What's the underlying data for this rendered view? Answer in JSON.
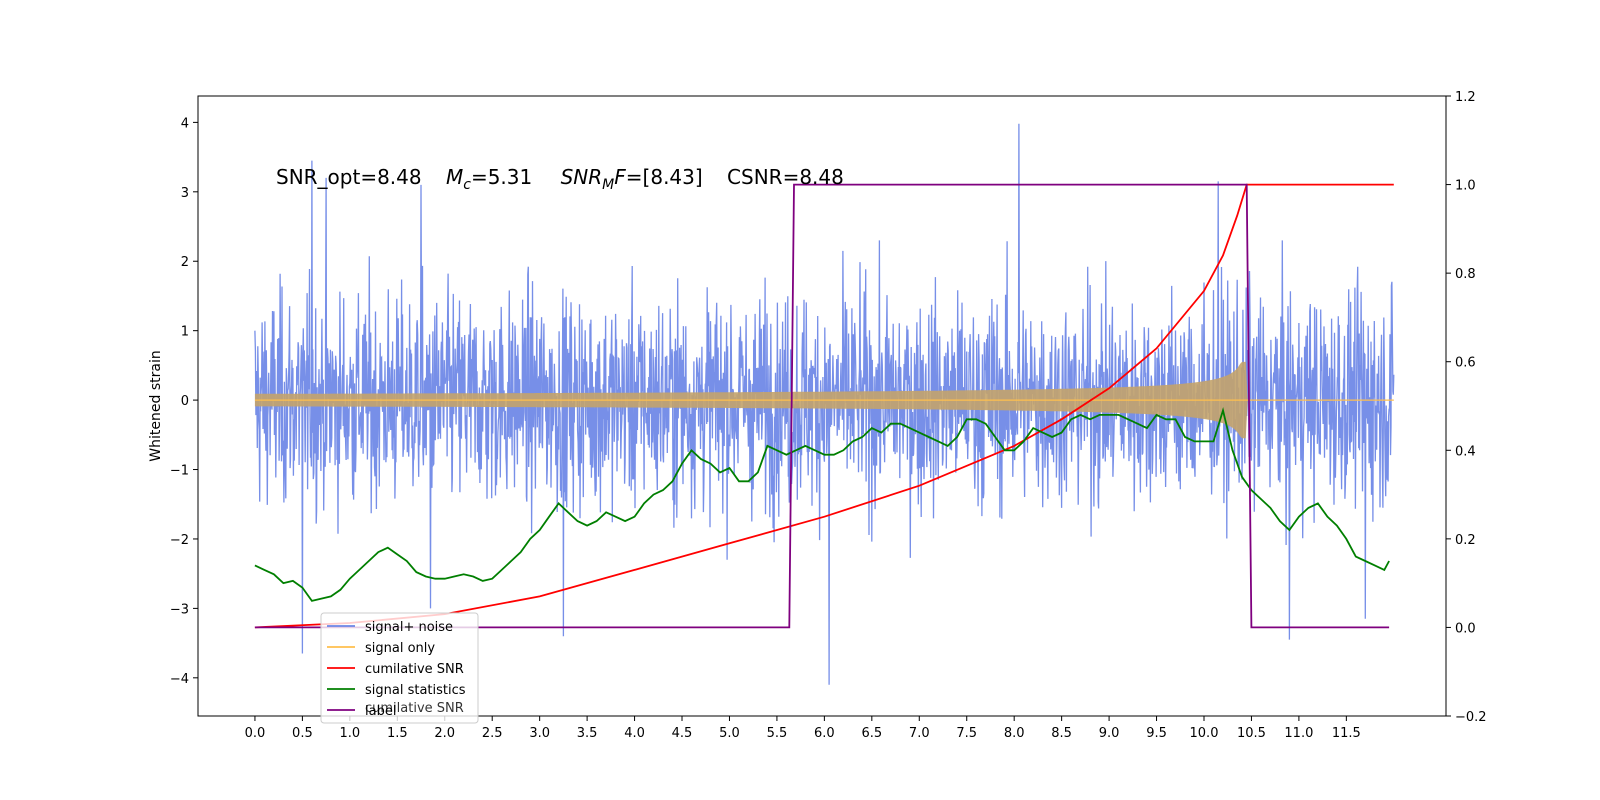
{
  "chart_data": {
    "type": "line",
    "annotation": {
      "snr_opt": "SNR_opt=8.48",
      "mc_symbol": "M",
      "mc_sub": "c",
      "mc_value": "=5.31",
      "snrmf_symbol": "SNR",
      "snrmf_sub": "M",
      "snrmf_tail": "F",
      "snrmf_value": "=[8.43]",
      "csnr": "CSNR=8.48"
    },
    "ylabel_left": "Whitened strain",
    "ylabel_right": "",
    "xlim": [
      -0.6,
      12.55
    ],
    "ylim_left": [
      -4.55,
      4.38
    ],
    "ylim_right": [
      -0.2,
      1.2
    ],
    "x_ticks": [
      0,
      0.5,
      1,
      1.5,
      2,
      2.5,
      3,
      3.5,
      4,
      4.5,
      5,
      5.5,
      6,
      6.5,
      7,
      7.5,
      8,
      8.5,
      9,
      9.5,
      10,
      10.5,
      11,
      11.5
    ],
    "x_tick_labels": [
      "0.0",
      "0.5",
      "1.0",
      "1.5",
      "2.0",
      "2.5",
      "3.0",
      "3.5",
      "4.0",
      "4.5",
      "5.0",
      "5.5",
      "6.0",
      "6.5",
      "7.0",
      "7.5",
      "8.0",
      "8.5",
      "9.0",
      "9.5",
      "10.0",
      "10.5",
      "11.0",
      "11.5"
    ],
    "y_left_ticks": [
      -4,
      -3,
      -2,
      -1,
      0,
      1,
      2,
      3,
      4
    ],
    "y_left_tick_labels": [
      "−4",
      "−3",
      "−2",
      "−1",
      "0",
      "1",
      "2",
      "3",
      "4"
    ],
    "y_right_ticks": [
      -0.2,
      0,
      0.2,
      0.4,
      0.6,
      0.8,
      1.0,
      1.2
    ],
    "y_right_tick_labels": [
      "−0.2",
      "0.0",
      "0.2",
      "0.4",
      "0.6",
      "0.8",
      "1.0",
      "1.2"
    ],
    "grid": false,
    "legend_placement": "lower-left",
    "legend": [
      {
        "label": "signal+ noise",
        "color": "#6b86e6"
      },
      {
        "label": "signal only",
        "color": "#ffbf4d"
      },
      {
        "label": "cumilative SNR",
        "color": "#ff0000"
      },
      {
        "label": "signal statistics",
        "color": "#007f00"
      },
      {
        "label": "label",
        "color": "#7f007f"
      }
    ],
    "legend_ghost_text": "cumilative SNR",
    "series": [
      {
        "name": "signal+ noise",
        "axis": "left",
        "color": "#6b86e6",
        "x_range": [
          0,
          12.0
        ],
        "envelope_typical": [
          -2.0,
          2.0
        ],
        "spikes": [
          {
            "x": 0.5,
            "y": -3.65
          },
          {
            "x": 0.6,
            "y": 3.45
          },
          {
            "x": 0.75,
            "y": 3.2
          },
          {
            "x": 1.75,
            "y": 3.1
          },
          {
            "x": 1.85,
            "y": -3.0
          },
          {
            "x": 3.25,
            "y": -3.4
          },
          {
            "x": 6.05,
            "y": -4.1
          },
          {
            "x": 8.05,
            "y": 3.98
          },
          {
            "x": 10.15,
            "y": 3.15
          },
          {
            "x": 10.9,
            "y": -3.45
          },
          {
            "x": 11.7,
            "y": -3.15
          }
        ]
      },
      {
        "name": "signal only",
        "axis": "left",
        "color": "#ffbf4d",
        "chirp_start": 0,
        "chirp_end": 10.45,
        "amplitude_start": 0.02,
        "amplitude_peak": 0.85
      },
      {
        "name": "cumilative SNR",
        "axis": "right",
        "color": "#ff0000",
        "x": [
          0,
          1.0,
          2.0,
          3.0,
          4.0,
          5.0,
          6.0,
          7.0,
          8.0,
          8.5,
          9.0,
          9.5,
          10.0,
          10.2,
          10.35,
          10.45,
          12.0
        ],
        "y": [
          0.0,
          0.01,
          0.03,
          0.07,
          0.13,
          0.19,
          0.25,
          0.32,
          0.41,
          0.47,
          0.54,
          0.63,
          0.76,
          0.84,
          0.93,
          1.0,
          1.0
        ]
      },
      {
        "name": "signal statistics",
        "axis": "right",
        "color": "#007f00",
        "x": [
          0,
          0.1,
          0.2,
          0.3,
          0.4,
          0.5,
          0.6,
          0.7,
          0.8,
          0.9,
          1.0,
          1.1,
          1.2,
          1.3,
          1.4,
          1.5,
          1.6,
          1.7,
          1.8,
          1.9,
          2.0,
          2.1,
          2.2,
          2.3,
          2.4,
          2.5,
          2.6,
          2.7,
          2.8,
          2.9,
          3.0,
          3.1,
          3.2,
          3.3,
          3.4,
          3.5,
          3.6,
          3.7,
          3.8,
          3.9,
          4.0,
          4.1,
          4.2,
          4.3,
          4.4,
          4.5,
          4.6,
          4.7,
          4.8,
          4.9,
          5.0,
          5.1,
          5.2,
          5.3,
          5.4,
          5.5,
          5.6,
          5.7,
          5.8,
          5.9,
          6.0,
          6.1,
          6.2,
          6.3,
          6.4,
          6.5,
          6.6,
          6.7,
          6.8,
          6.9,
          7.0,
          7.1,
          7.2,
          7.3,
          7.4,
          7.5,
          7.6,
          7.7,
          7.8,
          7.9,
          8.0,
          8.1,
          8.2,
          8.3,
          8.4,
          8.5,
          8.6,
          8.7,
          8.8,
          8.9,
          9.0,
          9.1,
          9.2,
          9.3,
          9.4,
          9.5,
          9.6,
          9.7,
          9.8,
          9.9,
          10.0,
          10.1,
          10.2,
          10.3,
          10.4,
          10.5,
          10.6,
          10.7,
          10.8,
          10.9,
          11.0,
          11.1,
          11.2,
          11.3,
          11.4,
          11.5,
          11.6,
          11.7,
          11.8,
          11.9,
          11.95
        ],
        "y": [
          0.14,
          0.13,
          0.12,
          0.1,
          0.105,
          0.09,
          0.06,
          0.065,
          0.07,
          0.085,
          0.11,
          0.13,
          0.15,
          0.17,
          0.18,
          0.165,
          0.15,
          0.125,
          0.115,
          0.11,
          0.11,
          0.115,
          0.12,
          0.115,
          0.105,
          0.11,
          0.13,
          0.15,
          0.17,
          0.2,
          0.22,
          0.25,
          0.28,
          0.26,
          0.24,
          0.23,
          0.24,
          0.26,
          0.25,
          0.24,
          0.25,
          0.28,
          0.3,
          0.31,
          0.33,
          0.37,
          0.4,
          0.38,
          0.37,
          0.35,
          0.36,
          0.33,
          0.33,
          0.35,
          0.41,
          0.4,
          0.39,
          0.4,
          0.41,
          0.4,
          0.39,
          0.39,
          0.4,
          0.42,
          0.43,
          0.45,
          0.44,
          0.46,
          0.46,
          0.45,
          0.44,
          0.43,
          0.42,
          0.41,
          0.43,
          0.47,
          0.47,
          0.46,
          0.43,
          0.4,
          0.4,
          0.42,
          0.45,
          0.44,
          0.43,
          0.44,
          0.47,
          0.48,
          0.47,
          0.48,
          0.48,
          0.48,
          0.47,
          0.46,
          0.45,
          0.48,
          0.47,
          0.47,
          0.43,
          0.42,
          0.42,
          0.42,
          0.49,
          0.4,
          0.34,
          0.31,
          0.29,
          0.27,
          0.24,
          0.22,
          0.25,
          0.27,
          0.28,
          0.25,
          0.23,
          0.2,
          0.16,
          0.15,
          0.14,
          0.13,
          0.15
        ]
      },
      {
        "name": "label",
        "axis": "right",
        "color": "#7f007f",
        "x": [
          0,
          5.63,
          5.68,
          10.45,
          10.5,
          11.95
        ],
        "y": [
          0,
          0,
          1,
          1,
          0,
          0
        ]
      }
    ]
  }
}
